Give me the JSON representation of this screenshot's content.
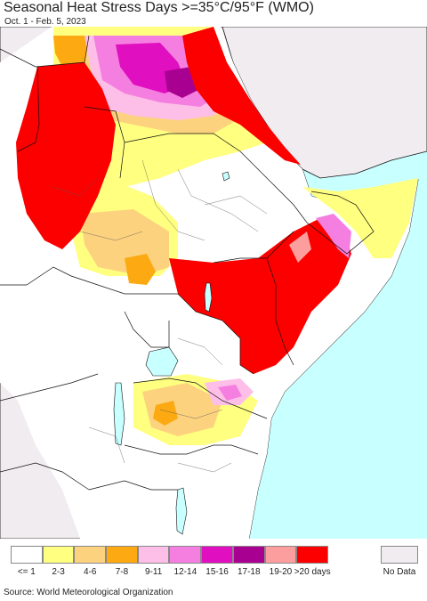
{
  "title": "Seasonal Heat Stress Days >=35°C/95°F (WMO)",
  "subtitle": "Oct. 1 - Feb. 5, 2023",
  "source": "Source: World Meteorological Organization",
  "legend": {
    "items": [
      {
        "label": "<= 1",
        "color": "#ffffff"
      },
      {
        "label": "2-3",
        "color": "#ffff80"
      },
      {
        "label": "4-6",
        "color": "#fdd27f"
      },
      {
        "label": "7-8",
        "color": "#fca912"
      },
      {
        "label": "9-11",
        "color": "#fdbfe8"
      },
      {
        "label": "12-14",
        "color": "#f57fe0"
      },
      {
        "label": "15-16",
        "color": "#e00fc0"
      },
      {
        "label": "17-18",
        "color": "#a80090"
      },
      {
        "label": "19-20",
        "color": "#fc9e9e"
      },
      {
        "label": ">20 days",
        "color": "#fc0000"
      }
    ],
    "no_data": {
      "label": "No Data",
      "color": "#f0ecf0"
    }
  },
  "colors": {
    "ocean": "#c8ffff",
    "land_other": "#f0ecf0",
    "border": "#111111"
  }
}
